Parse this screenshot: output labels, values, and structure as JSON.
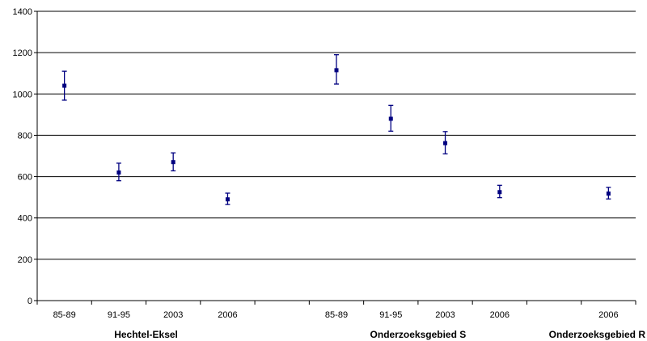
{
  "chart_data": {
    "type": "scatter",
    "title": "",
    "xlabel": "",
    "ylabel": "",
    "ylim": [
      0,
      1400
    ],
    "yticks": [
      0,
      200,
      400,
      600,
      800,
      1000,
      1200,
      1400
    ],
    "grid": "horizontal",
    "legend": "none",
    "marker": "square",
    "colors": {
      "marker": "#000080",
      "grid": "#000000",
      "axis": "#000000"
    },
    "categories": [
      "85-89",
      "91-95",
      "2003",
      "2006",
      "",
      "85-89",
      "91-95",
      "2003",
      "2006",
      "",
      "2006"
    ],
    "groups": [
      {
        "label": "Hechtel-Eksel",
        "start": 0,
        "end": 3
      },
      {
        "label": "Onderzoeksgebied S",
        "start": 5,
        "end": 8
      },
      {
        "label": "Onderzoeksgebied R",
        "start": 10,
        "end": 10
      }
    ],
    "points": [
      {
        "index": 0,
        "value": 1040,
        "err_low": 970,
        "err_high": 1110
      },
      {
        "index": 1,
        "value": 620,
        "err_low": 580,
        "err_high": 665
      },
      {
        "index": 2,
        "value": 670,
        "err_low": 628,
        "err_high": 715
      },
      {
        "index": 3,
        "value": 490,
        "err_low": 465,
        "err_high": 520
      },
      {
        "index": 5,
        "value": 1115,
        "err_low": 1048,
        "err_high": 1190
      },
      {
        "index": 6,
        "value": 880,
        "err_low": 820,
        "err_high": 945
      },
      {
        "index": 7,
        "value": 762,
        "err_low": 710,
        "err_high": 818
      },
      {
        "index": 8,
        "value": 525,
        "err_low": 498,
        "err_high": 558
      },
      {
        "index": 10,
        "value": 518,
        "err_low": 492,
        "err_high": 548
      }
    ]
  }
}
